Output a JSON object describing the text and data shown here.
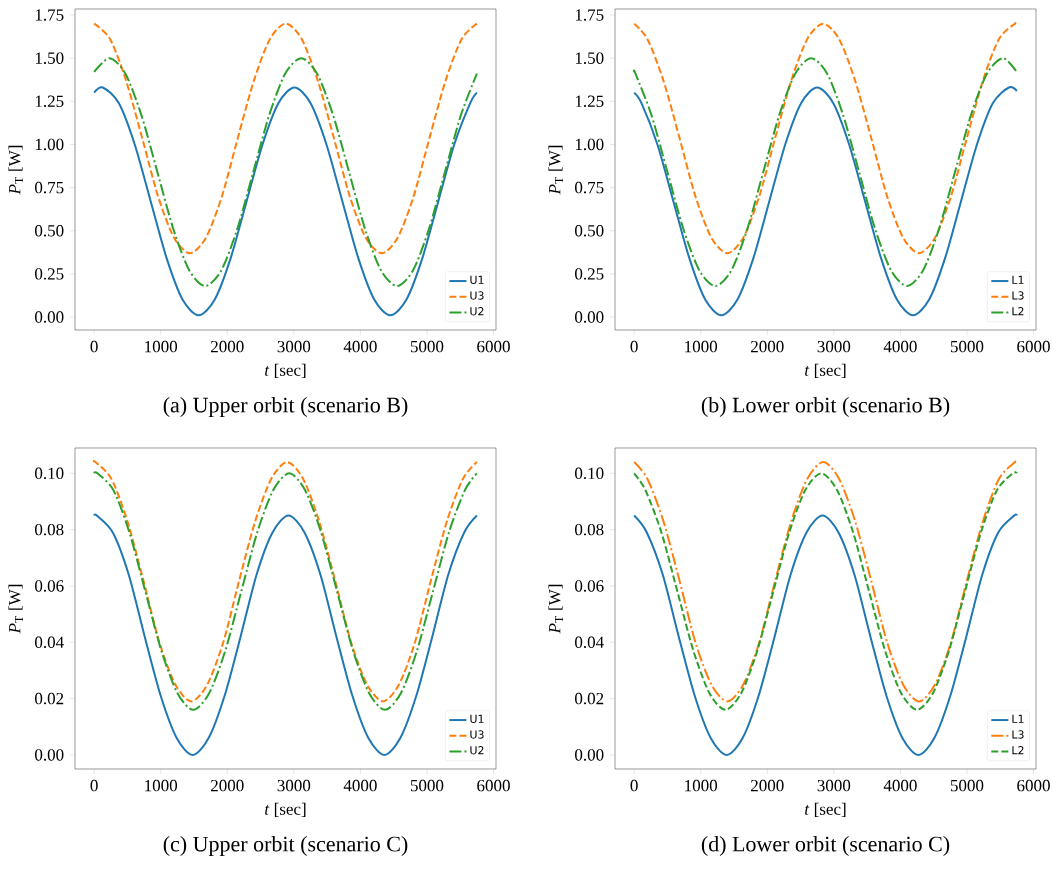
{
  "chart_data": [
    {
      "type": "line",
      "title": "(a) Upper orbit (scenario B)",
      "xlabel": "*t* [sec]",
      "ylabel": "*P*$_{T}$ [W]",
      "xlim": [
        -287.5,
        6037.5
      ],
      "ylim": [
        -0.075,
        1.785
      ],
      "xticks": [
        0,
        1000,
        2000,
        3000,
        4000,
        5000,
        6000
      ],
      "yticks": [
        {
          "value": 0,
          "label": "0.00"
        },
        {
          "value": 0.25,
          "label": "0.25"
        },
        {
          "value": 0.5,
          "label": "0.50"
        },
        {
          "value": 0.75,
          "label": "0.75"
        },
        {
          "value": 1,
          "label": "1.00"
        },
        {
          "value": 1.25,
          "label": "1.25"
        },
        {
          "value": 1.5,
          "label": "1.50"
        },
        {
          "value": 1.75,
          "label": "1.75"
        }
      ],
      "legend": "bottom right",
      "grid": false,
      "series": [
        {
          "name": "U1",
          "color": "#1f77b4",
          "line_style": "solid",
          "x": [
            0,
            130,
            370,
            610,
            850,
            1090,
            1330,
            1570,
            1810,
            2050,
            2290,
            2530,
            2770,
            3010,
            3250,
            3490,
            3730,
            3970,
            4210,
            4450,
            4690,
            4930,
            5170,
            5410,
            5650,
            5750
          ],
          "values": [
            1.3,
            1.33,
            1.24,
            1.0,
            0.67,
            0.34,
            0.1,
            0.01,
            0.1,
            0.34,
            0.67,
            1.0,
            1.24,
            1.33,
            1.24,
            1.0,
            0.67,
            0.34,
            0.1,
            0.01,
            0.1,
            0.34,
            0.67,
            1.0,
            1.24,
            1.3
          ]
        },
        {
          "name": "U3",
          "color": "#ff7f0e",
          "line_style": "dashed",
          "x": [
            0,
            240,
            480,
            720,
            960,
            1200,
            1440,
            1680,
            1920,
            2160,
            2400,
            2640,
            2880,
            3120,
            3360,
            3600,
            3840,
            4080,
            4320,
            4560,
            4800,
            5040,
            5280,
            5520,
            5750
          ],
          "values": [
            1.7,
            1.61,
            1.37,
            1.04,
            0.7,
            0.46,
            0.37,
            0.46,
            0.7,
            1.04,
            1.37,
            1.61,
            1.7,
            1.61,
            1.37,
            1.04,
            0.7,
            0.46,
            0.37,
            0.46,
            0.7,
            1.04,
            1.37,
            1.61,
            1.7
          ]
        },
        {
          "name": "U2",
          "color": "#2ca02c",
          "line_style": "dashdot",
          "x": [
            0,
            230,
            470,
            710,
            950,
            1190,
            1430,
            1670,
            1910,
            2150,
            2390,
            2630,
            2870,
            3110,
            3350,
            3590,
            3830,
            4070,
            4310,
            4550,
            4790,
            5030,
            5270,
            5510,
            5750
          ],
          "values": [
            1.42,
            1.5,
            1.41,
            1.17,
            0.84,
            0.51,
            0.27,
            0.18,
            0.27,
            0.51,
            0.84,
            1.17,
            1.41,
            1.5,
            1.41,
            1.17,
            0.84,
            0.51,
            0.27,
            0.18,
            0.27,
            0.51,
            0.84,
            1.17,
            1.41
          ]
        }
      ]
    },
    {
      "type": "line",
      "title": "(b) Lower orbit (scenario B)",
      "xlabel": "*t* [sec]",
      "ylabel": "*P*$_{T}$ [W]",
      "xlim": [
        -287.5,
        6037.5
      ],
      "ylim": [
        -0.075,
        1.785
      ],
      "xticks": [
        0,
        1000,
        2000,
        3000,
        4000,
        5000,
        6000
      ],
      "yticks": [
        {
          "value": 0,
          "label": "0.00"
        },
        {
          "value": 0.25,
          "label": "0.25"
        },
        {
          "value": 0.5,
          "label": "0.50"
        },
        {
          "value": 0.75,
          "label": "0.75"
        },
        {
          "value": 1,
          "label": "1.00"
        },
        {
          "value": 1.25,
          "label": "1.25"
        },
        {
          "value": 1.5,
          "label": "1.50"
        },
        {
          "value": 1.75,
          "label": "1.75"
        }
      ],
      "legend": "bottom right",
      "grid": false,
      "series": [
        {
          "name": "L1",
          "color": "#1f77b4",
          "line_style": "solid",
          "x": [
            0,
            110,
            350,
            590,
            830,
            1070,
            1310,
            1550,
            1790,
            2030,
            2270,
            2510,
            2750,
            2990,
            3230,
            3470,
            3710,
            3950,
            4190,
            4430,
            4670,
            4910,
            5150,
            5390,
            5630,
            5750
          ],
          "values": [
            1.3,
            1.24,
            1.0,
            0.67,
            0.34,
            0.1,
            0.01,
            0.1,
            0.34,
            0.67,
            1.0,
            1.24,
            1.33,
            1.24,
            1.0,
            0.67,
            0.34,
            0.1,
            0.01,
            0.1,
            0.34,
            0.67,
            1.0,
            1.24,
            1.33,
            1.31
          ]
        },
        {
          "name": "L3",
          "color": "#ff7f0e",
          "line_style": "dashed",
          "x": [
            0,
            200,
            440,
            680,
            920,
            1160,
            1400,
            1640,
            1880,
            2120,
            2360,
            2600,
            2840,
            3080,
            3320,
            3560,
            3800,
            4040,
            4280,
            4520,
            4760,
            5000,
            5240,
            5480,
            5720,
            5750
          ],
          "values": [
            1.7,
            1.61,
            1.37,
            1.04,
            0.7,
            0.46,
            0.37,
            0.46,
            0.7,
            1.04,
            1.37,
            1.61,
            1.7,
            1.61,
            1.37,
            1.04,
            0.7,
            0.46,
            0.37,
            0.46,
            0.7,
            1.04,
            1.37,
            1.61,
            1.7,
            1.7
          ]
        },
        {
          "name": "L2",
          "color": "#2ca02c",
          "line_style": "dashdot",
          "x": [
            0,
            20,
            260,
            500,
            740,
            980,
            1220,
            1460,
            1700,
            1940,
            2180,
            2420,
            2660,
            2900,
            3140,
            3380,
            3620,
            3860,
            4100,
            4340,
            4580,
            4820,
            5060,
            5300,
            5540,
            5750
          ],
          "values": [
            1.42,
            1.41,
            1.17,
            0.84,
            0.51,
            0.27,
            0.18,
            0.27,
            0.51,
            0.84,
            1.17,
            1.41,
            1.5,
            1.41,
            1.17,
            0.84,
            0.51,
            0.27,
            0.18,
            0.27,
            0.51,
            0.84,
            1.17,
            1.41,
            1.5,
            1.42
          ]
        }
      ]
    },
    {
      "type": "line",
      "title": "(c) Upper orbit (scenario C)",
      "xlabel": "*t* [sec]",
      "ylabel": "*P*$_{T}$ [W]",
      "xlim": [
        -287.5,
        6037.5
      ],
      "ylim": [
        -0.005,
        0.109
      ],
      "xticks": [
        0,
        1000,
        2000,
        3000,
        4000,
        5000,
        6000
      ],
      "yticks": [
        {
          "value": 0,
          "label": "0.00"
        },
        {
          "value": 0.02,
          "label": "0.02"
        },
        {
          "value": 0.04,
          "label": "0.04"
        },
        {
          "value": 0.06,
          "label": "0.06"
        },
        {
          "value": 0.08,
          "label": "0.08"
        },
        {
          "value": 0.1,
          "label": "0.10"
        }
      ],
      "legend": "bottom right",
      "grid": false,
      "series": [
        {
          "name": "U1",
          "color": "#1f77b4",
          "line_style": "solid",
          "x": [
            0,
            40,
            280,
            520,
            760,
            1000,
            1240,
            1480,
            1720,
            1960,
            2200,
            2440,
            2680,
            2920,
            3160,
            3400,
            3640,
            3880,
            4120,
            4360,
            4600,
            4840,
            5080,
            5320,
            5560,
            5750
          ],
          "values": [
            0.085,
            0.085,
            0.079,
            0.064,
            0.042,
            0.021,
            0.006,
            0.0,
            0.006,
            0.021,
            0.042,
            0.064,
            0.079,
            0.085,
            0.079,
            0.064,
            0.042,
            0.021,
            0.006,
            0.0,
            0.006,
            0.021,
            0.042,
            0.064,
            0.079,
            0.085
          ]
        },
        {
          "name": "U3",
          "color": "#ff7f0e",
          "line_style": "dashed",
          "x": [
            0,
            20,
            260,
            500,
            740,
            980,
            1220,
            1460,
            1700,
            1940,
            2180,
            2420,
            2660,
            2900,
            3140,
            3380,
            3620,
            3860,
            4100,
            4340,
            4580,
            4820,
            5060,
            5300,
            5540,
            5750
          ],
          "values": [
            0.104,
            0.104,
            0.098,
            0.083,
            0.062,
            0.04,
            0.025,
            0.019,
            0.025,
            0.04,
            0.062,
            0.083,
            0.098,
            0.104,
            0.098,
            0.083,
            0.062,
            0.04,
            0.025,
            0.019,
            0.025,
            0.04,
            0.062,
            0.083,
            0.098,
            0.104
          ]
        },
        {
          "name": "U2",
          "color": "#2ca02c",
          "line_style": "dashdot",
          "x": [
            0,
            50,
            290,
            530,
            770,
            1010,
            1250,
            1490,
            1730,
            1970,
            2210,
            2450,
            2690,
            2930,
            3170,
            3410,
            3650,
            3890,
            4130,
            4370,
            4610,
            4850,
            5090,
            5330,
            5570,
            5750
          ],
          "values": [
            0.1,
            0.1,
            0.094,
            0.079,
            0.058,
            0.037,
            0.022,
            0.016,
            0.022,
            0.037,
            0.058,
            0.079,
            0.094,
            0.1,
            0.094,
            0.079,
            0.058,
            0.037,
            0.022,
            0.016,
            0.022,
            0.037,
            0.058,
            0.079,
            0.094,
            0.1
          ]
        }
      ]
    },
    {
      "type": "line",
      "title": "(d) Lower orbit (scenario C)",
      "xlabel": "*t* [sec]",
      "ylabel": "*P*$_{T}$ [W]",
      "xlim": [
        -287.5,
        6037.5
      ],
      "ylim": [
        -0.005,
        0.109
      ],
      "xticks": [
        0,
        1000,
        2000,
        3000,
        4000,
        5000,
        6000
      ],
      "yticks": [
        {
          "value": 0,
          "label": "0.00"
        },
        {
          "value": 0.02,
          "label": "0.02"
        },
        {
          "value": 0.04,
          "label": "0.04"
        },
        {
          "value": 0.06,
          "label": "0.06"
        },
        {
          "value": 0.08,
          "label": "0.08"
        },
        {
          "value": 0.1,
          "label": "0.10"
        }
      ],
      "legend": "bottom right",
      "grid": false,
      "series": [
        {
          "name": "L1",
          "color": "#1f77b4",
          "line_style": "solid",
          "x": [
            0,
            190,
            430,
            670,
            910,
            1150,
            1390,
            1630,
            1870,
            2110,
            2350,
            2590,
            2830,
            3070,
            3310,
            3550,
            3790,
            4030,
            4270,
            4510,
            4750,
            4990,
            5230,
            5470,
            5710,
            5750
          ],
          "values": [
            0.085,
            0.079,
            0.064,
            0.042,
            0.021,
            0.006,
            0.0,
            0.006,
            0.021,
            0.042,
            0.064,
            0.079,
            0.085,
            0.079,
            0.064,
            0.042,
            0.021,
            0.006,
            0.0,
            0.006,
            0.021,
            0.042,
            0.064,
            0.079,
            0.085,
            0.085
          ]
        },
        {
          "name": "L3",
          "color": "#ff7f0e",
          "line_style": "dashdot",
          "x": [
            0,
            200,
            440,
            680,
            920,
            1160,
            1400,
            1640,
            1880,
            2120,
            2360,
            2600,
            2840,
            3080,
            3320,
            3560,
            3800,
            4040,
            4280,
            4520,
            4760,
            5000,
            5240,
            5480,
            5720,
            5750
          ],
          "values": [
            0.104,
            0.098,
            0.083,
            0.062,
            0.04,
            0.025,
            0.019,
            0.025,
            0.04,
            0.062,
            0.083,
            0.098,
            0.104,
            0.098,
            0.083,
            0.062,
            0.04,
            0.025,
            0.019,
            0.025,
            0.04,
            0.062,
            0.083,
            0.098,
            0.104,
            0.104
          ]
        },
        {
          "name": "L2",
          "color": "#2ca02c",
          "line_style": "dashed",
          "x": [
            0,
            170,
            410,
            650,
            890,
            1130,
            1370,
            1610,
            1850,
            2090,
            2330,
            2570,
            2810,
            3050,
            3290,
            3530,
            3770,
            4010,
            4250,
            4490,
            4730,
            4970,
            5210,
            5450,
            5690,
            5750
          ],
          "values": [
            0.1,
            0.094,
            0.079,
            0.058,
            0.037,
            0.022,
            0.016,
            0.022,
            0.037,
            0.058,
            0.079,
            0.094,
            0.1,
            0.094,
            0.079,
            0.058,
            0.037,
            0.022,
            0.016,
            0.022,
            0.037,
            0.058,
            0.079,
            0.094,
            0.1,
            0.1
          ]
        }
      ]
    }
  ]
}
